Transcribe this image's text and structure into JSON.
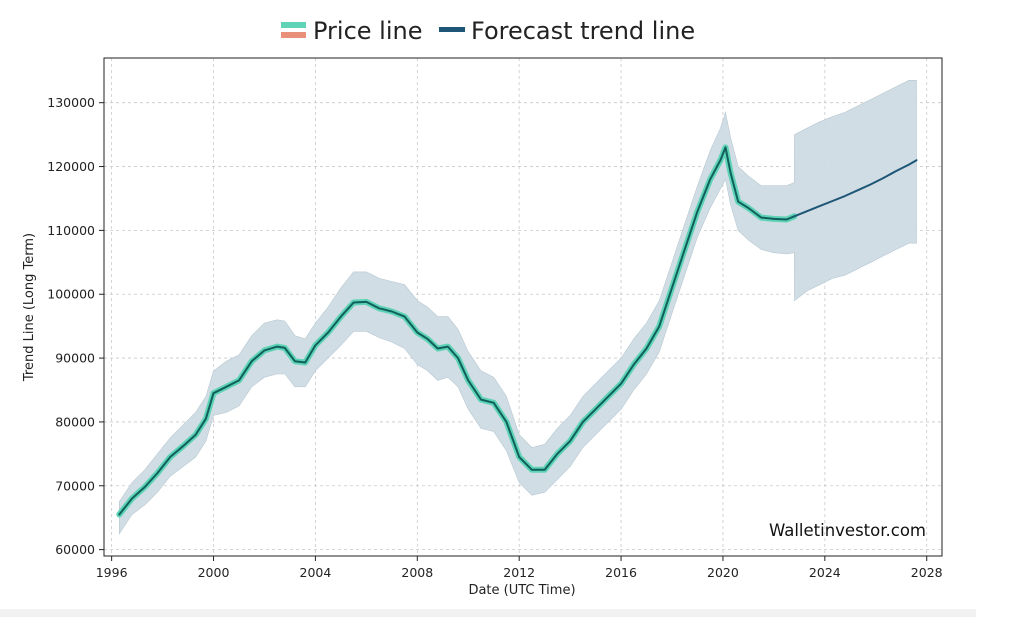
{
  "chart_data": {
    "type": "line",
    "xlabel": "Date (UTC Time)",
    "ylabel": "Trend Line (Long Term)",
    "xlim": [
      1995.7,
      2028.6
    ],
    "ylim": [
      59000,
      137000
    ],
    "x_ticks": [
      1996,
      2000,
      2004,
      2008,
      2012,
      2016,
      2020,
      2024,
      2028
    ],
    "y_ticks": [
      60000,
      70000,
      80000,
      90000,
      100000,
      110000,
      120000,
      130000
    ],
    "grid": true,
    "legend_position": "top-center",
    "watermark": "Walletinvestor.com",
    "series": [
      {
        "name": "Price line",
        "color": "#5fd3b5",
        "color_alt": "#e8907a",
        "points": [
          [
            1996.3,
            65500
          ],
          [
            1996.8,
            68000
          ],
          [
            1997.3,
            69800
          ],
          [
            1997.8,
            72000
          ],
          [
            1998.3,
            74500
          ],
          [
            1998.8,
            76200
          ],
          [
            1999.3,
            78000
          ],
          [
            1999.7,
            80500
          ],
          [
            2000.0,
            84500
          ],
          [
            2000.5,
            85500
          ],
          [
            2001.0,
            86500
          ],
          [
            2001.5,
            89500
          ],
          [
            2002.0,
            91200
          ],
          [
            2002.5,
            91800
          ],
          [
            2002.8,
            91600
          ],
          [
            2003.2,
            89500
          ],
          [
            2003.6,
            89300
          ],
          [
            2004.0,
            92000
          ],
          [
            2004.5,
            94000
          ],
          [
            2005.0,
            96500
          ],
          [
            2005.5,
            98700
          ],
          [
            2006.0,
            98800
          ],
          [
            2006.5,
            97800
          ],
          [
            2007.0,
            97300
          ],
          [
            2007.5,
            96500
          ],
          [
            2008.0,
            94000
          ],
          [
            2008.4,
            93000
          ],
          [
            2008.8,
            91500
          ],
          [
            2009.2,
            91800
          ],
          [
            2009.6,
            90000
          ],
          [
            2010.0,
            86500
          ],
          [
            2010.5,
            83500
          ],
          [
            2011.0,
            83000
          ],
          [
            2011.5,
            80000
          ],
          [
            2012.0,
            74500
          ],
          [
            2012.5,
            72500
          ],
          [
            2013.0,
            72500
          ],
          [
            2013.5,
            75000
          ],
          [
            2014.0,
            77000
          ],
          [
            2014.5,
            80000
          ],
          [
            2015.0,
            82000
          ],
          [
            2015.5,
            84000
          ],
          [
            2016.0,
            86000
          ],
          [
            2016.5,
            89000
          ],
          [
            2017.0,
            91500
          ],
          [
            2017.5,
            95000
          ],
          [
            2018.0,
            101000
          ],
          [
            2018.5,
            107000
          ],
          [
            2019.0,
            113000
          ],
          [
            2019.5,
            118000
          ],
          [
            2019.9,
            121000
          ],
          [
            2020.1,
            123000
          ],
          [
            2020.3,
            119000
          ],
          [
            2020.6,
            114500
          ],
          [
            2021.0,
            113500
          ],
          [
            2021.5,
            112000
          ],
          [
            2022.0,
            111800
          ],
          [
            2022.5,
            111700
          ],
          [
            2022.8,
            112200
          ]
        ]
      },
      {
        "name": "Forecast trend line",
        "color": "#1d5676",
        "points": [
          [
            2022.8,
            112200
          ],
          [
            2023.3,
            113000
          ],
          [
            2023.8,
            113800
          ],
          [
            2024.3,
            114600
          ],
          [
            2024.8,
            115400
          ],
          [
            2025.3,
            116300
          ],
          [
            2025.8,
            117200
          ],
          [
            2026.3,
            118200
          ],
          [
            2026.8,
            119300
          ],
          [
            2027.3,
            120300
          ],
          [
            2027.6,
            121000
          ]
        ]
      }
    ],
    "band": {
      "color": "#cfdbe3",
      "upper": [
        [
          1996.3,
          67500
        ],
        [
          1996.8,
          70500
        ],
        [
          1997.3,
          72500
        ],
        [
          1997.8,
          75000
        ],
        [
          1998.3,
          77500
        ],
        [
          1998.8,
          79500
        ],
        [
          1999.3,
          81500
        ],
        [
          1999.7,
          84000
        ],
        [
          2000.0,
          88000
        ],
        [
          2000.5,
          89500
        ],
        [
          2001.0,
          90500
        ],
        [
          2001.5,
          93500
        ],
        [
          2002.0,
          95500
        ],
        [
          2002.5,
          96000
        ],
        [
          2002.8,
          95800
        ],
        [
          2003.2,
          93500
        ],
        [
          2003.6,
          93000
        ],
        [
          2004.0,
          95500
        ],
        [
          2004.5,
          98000
        ],
        [
          2005.0,
          101000
        ],
        [
          2005.5,
          103500
        ],
        [
          2006.0,
          103500
        ],
        [
          2006.5,
          102500
        ],
        [
          2007.0,
          102000
        ],
        [
          2007.5,
          101500
        ],
        [
          2008.0,
          99000
        ],
        [
          2008.4,
          98000
        ],
        [
          2008.8,
          96500
        ],
        [
          2009.2,
          96500
        ],
        [
          2009.6,
          94500
        ],
        [
          2010.0,
          91000
        ],
        [
          2010.5,
          88000
        ],
        [
          2011.0,
          87000
        ],
        [
          2011.5,
          84000
        ],
        [
          2012.0,
          78000
        ],
        [
          2012.5,
          76000
        ],
        [
          2013.0,
          76500
        ],
        [
          2013.5,
          79000
        ],
        [
          2014.0,
          81000
        ],
        [
          2014.5,
          84000
        ],
        [
          2015.0,
          86000
        ],
        [
          2015.5,
          88000
        ],
        [
          2016.0,
          90000
        ],
        [
          2016.5,
          93000
        ],
        [
          2017.0,
          95500
        ],
        [
          2017.5,
          99000
        ],
        [
          2018.0,
          105000
        ],
        [
          2018.5,
          111000
        ],
        [
          2019.0,
          117000
        ],
        [
          2019.5,
          122500
        ],
        [
          2019.9,
          126000
        ],
        [
          2020.1,
          128500
        ],
        [
          2020.3,
          124500
        ],
        [
          2020.6,
          120000
        ],
        [
          2021.0,
          118500
        ],
        [
          2021.5,
          117000
        ],
        [
          2022.0,
          117000
        ],
        [
          2022.5,
          117000
        ],
        [
          2022.8,
          117500
        ],
        [
          2022.81,
          125000
        ],
        [
          2023.3,
          126000
        ],
        [
          2023.8,
          127000
        ],
        [
          2024.3,
          127800
        ],
        [
          2024.8,
          128500
        ],
        [
          2025.3,
          129500
        ],
        [
          2025.8,
          130500
        ],
        [
          2026.3,
          131500
        ],
        [
          2026.8,
          132500
        ],
        [
          2027.3,
          133500
        ],
        [
          2027.6,
          133500
        ]
      ],
      "lower": [
        [
          1996.3,
          62500
        ],
        [
          1996.8,
          65500
        ],
        [
          1997.3,
          67000
        ],
        [
          1997.8,
          69000
        ],
        [
          1998.3,
          71500
        ],
        [
          1998.8,
          73000
        ],
        [
          1999.3,
          74500
        ],
        [
          1999.7,
          77000
        ],
        [
          2000.0,
          81000
        ],
        [
          2000.5,
          81500
        ],
        [
          2001.0,
          82500
        ],
        [
          2001.5,
          85500
        ],
        [
          2002.0,
          87000
        ],
        [
          2002.5,
          87500
        ],
        [
          2002.8,
          87500
        ],
        [
          2003.2,
          85500
        ],
        [
          2003.6,
          85500
        ],
        [
          2004.0,
          88000
        ],
        [
          2004.5,
          90000
        ],
        [
          2005.0,
          92000
        ],
        [
          2005.5,
          94200
        ],
        [
          2006.0,
          94200
        ],
        [
          2006.5,
          93200
        ],
        [
          2007.0,
          92500
        ],
        [
          2007.5,
          91500
        ],
        [
          2008.0,
          89000
        ],
        [
          2008.4,
          88000
        ],
        [
          2008.8,
          86500
        ],
        [
          2009.2,
          87000
        ],
        [
          2009.6,
          85500
        ],
        [
          2010.0,
          82000
        ],
        [
          2010.5,
          79000
        ],
        [
          2011.0,
          78500
        ],
        [
          2011.5,
          75500
        ],
        [
          2012.0,
          70500
        ],
        [
          2012.5,
          68500
        ],
        [
          2013.0,
          69000
        ],
        [
          2013.5,
          71000
        ],
        [
          2014.0,
          73000
        ],
        [
          2014.5,
          76000
        ],
        [
          2015.0,
          78000
        ],
        [
          2015.5,
          80000
        ],
        [
          2016.0,
          82000
        ],
        [
          2016.5,
          85000
        ],
        [
          2017.0,
          87500
        ],
        [
          2017.5,
          91000
        ],
        [
          2018.0,
          97000
        ],
        [
          2018.5,
          103000
        ],
        [
          2019.0,
          109000
        ],
        [
          2019.5,
          113500
        ],
        [
          2019.9,
          116500
        ],
        [
          2020.1,
          118000
        ],
        [
          2020.3,
          114000
        ],
        [
          2020.6,
          110000
        ],
        [
          2021.0,
          108500
        ],
        [
          2021.5,
          107000
        ],
        [
          2022.0,
          106500
        ],
        [
          2022.5,
          106300
        ],
        [
          2022.8,
          106500
        ],
        [
          2022.81,
          99000
        ],
        [
          2023.3,
          100500
        ],
        [
          2023.8,
          101500
        ],
        [
          2024.3,
          102500
        ],
        [
          2024.8,
          103000
        ],
        [
          2025.3,
          104000
        ],
        [
          2025.8,
          105000
        ],
        [
          2026.3,
          106000
        ],
        [
          2026.8,
          107000
        ],
        [
          2027.3,
          108000
        ],
        [
          2027.6,
          108000
        ]
      ]
    }
  }
}
